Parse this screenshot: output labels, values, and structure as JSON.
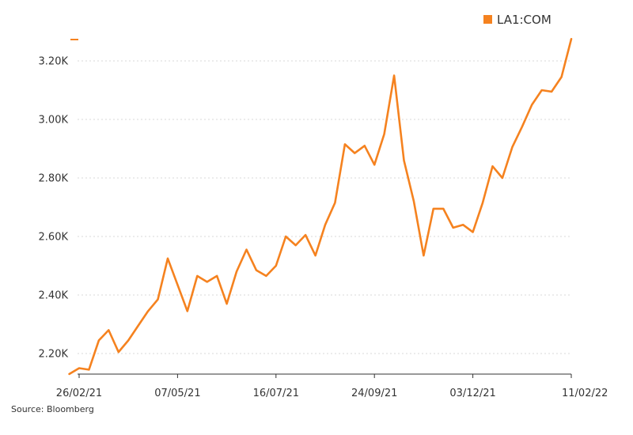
{
  "colors": {
    "series": "#f5821f",
    "axis": "#333333",
    "grid": "#d9d9d9",
    "text": "#333333"
  },
  "source_text": "Source: Bloomberg",
  "chart_data": {
    "type": "line",
    "grid": true,
    "legend_position": "top-right",
    "ylim": [
      2130,
      3270
    ],
    "y_ticks": [
      2200,
      2400,
      2600,
      2800,
      3000,
      3200
    ],
    "y_tick_labels": [
      "2.20K",
      "2.40K",
      "2.60K",
      "2.80K",
      "3.00K",
      "3.20K"
    ],
    "x_tick_dates": [
      "2021-02-26",
      "2021-05-07",
      "2021-07-16",
      "2021-09-24",
      "2021-12-03",
      "2022-02-11"
    ],
    "x_tick_labels": [
      "26/02/21",
      "07/05/21",
      "16/07/21",
      "24/09/21",
      "03/12/21",
      "11/02/22"
    ],
    "series": [
      {
        "name": "LA1:COM",
        "points": [
          [
            "2021-02-19",
            2130
          ],
          [
            "2021-02-26",
            2150
          ],
          [
            "2021-03-05",
            2145
          ],
          [
            "2021-03-12",
            2245
          ],
          [
            "2021-03-19",
            2280
          ],
          [
            "2021-03-26",
            2205
          ],
          [
            "2021-04-02",
            2245
          ],
          [
            "2021-04-09",
            2295
          ],
          [
            "2021-04-16",
            2345
          ],
          [
            "2021-04-23",
            2385
          ],
          [
            "2021-04-30",
            2525
          ],
          [
            "2021-05-07",
            2435
          ],
          [
            "2021-05-14",
            2345
          ],
          [
            "2021-05-21",
            2465
          ],
          [
            "2021-05-28",
            2445
          ],
          [
            "2021-06-04",
            2465
          ],
          [
            "2021-06-11",
            2370
          ],
          [
            "2021-06-18",
            2480
          ],
          [
            "2021-06-25",
            2555
          ],
          [
            "2021-07-02",
            2485
          ],
          [
            "2021-07-09",
            2465
          ],
          [
            "2021-07-16",
            2500
          ],
          [
            "2021-07-23",
            2600
          ],
          [
            "2021-07-30",
            2570
          ],
          [
            "2021-08-06",
            2605
          ],
          [
            "2021-08-13",
            2535
          ],
          [
            "2021-08-20",
            2640
          ],
          [
            "2021-08-27",
            2715
          ],
          [
            "2021-09-03",
            2915
          ],
          [
            "2021-09-10",
            2885
          ],
          [
            "2021-09-17",
            2910
          ],
          [
            "2021-09-24",
            2845
          ],
          [
            "2021-10-01",
            2950
          ],
          [
            "2021-10-08",
            3150
          ],
          [
            "2021-10-15",
            2860
          ],
          [
            "2021-10-22",
            2720
          ],
          [
            "2021-10-29",
            2535
          ],
          [
            "2021-11-05",
            2695
          ],
          [
            "2021-11-12",
            2695
          ],
          [
            "2021-11-19",
            2630
          ],
          [
            "2021-11-26",
            2640
          ],
          [
            "2021-12-03",
            2615
          ],
          [
            "2021-12-10",
            2715
          ],
          [
            "2021-12-17",
            2840
          ],
          [
            "2021-12-24",
            2800
          ],
          [
            "2021-12-31",
            2905
          ],
          [
            "2022-01-07",
            2975
          ],
          [
            "2022-01-14",
            3050
          ],
          [
            "2022-01-21",
            3100
          ],
          [
            "2022-01-28",
            3095
          ],
          [
            "2022-02-04",
            3145
          ],
          [
            "2022-02-11",
            3275
          ]
        ]
      }
    ]
  }
}
